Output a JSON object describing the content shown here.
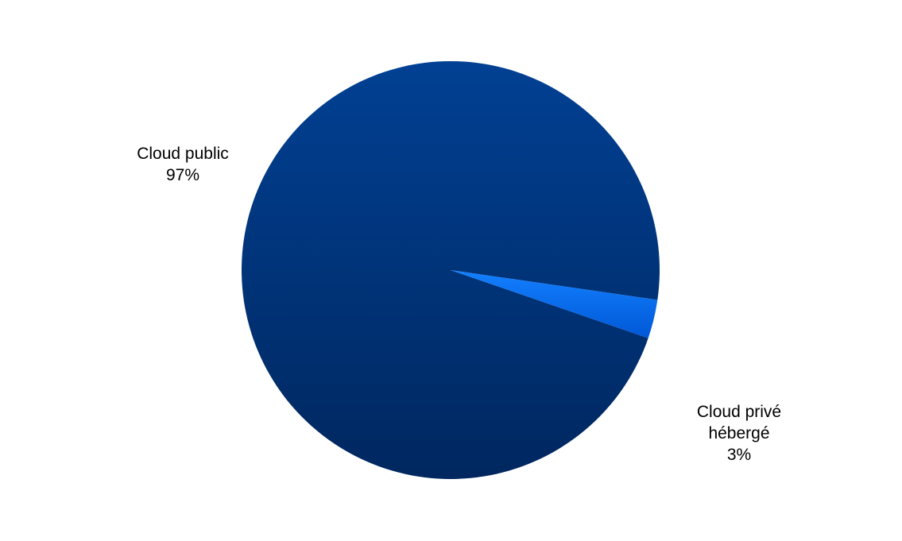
{
  "chart_data": {
    "type": "pie",
    "title": "",
    "slices": [
      {
        "label_lines": [
          "Cloud public"
        ],
        "value_text": "97%",
        "value": 97,
        "color": "#003a86"
      },
      {
        "label_lines": [
          "Cloud privé",
          "hébergé"
        ],
        "value_text": "3%",
        "value": 3,
        "color": "#0a6df0"
      }
    ],
    "colors": {
      "public_gradient_top": "#014093",
      "public_gradient_bottom": "#00275f",
      "private_gradient_top": "#1380ff",
      "private_gradient_bottom": "#0058d6",
      "label_text": "#000000",
      "background": "#ffffff"
    },
    "legend": "none (data labels beside slices)"
  }
}
